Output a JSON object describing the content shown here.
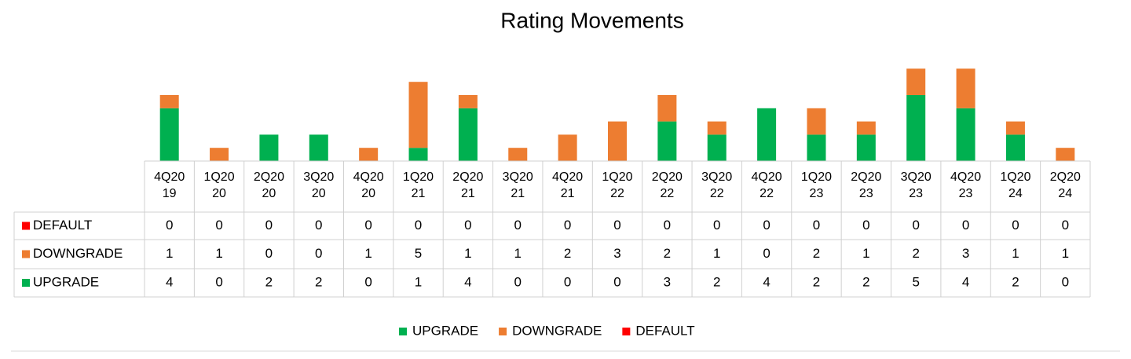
{
  "chart_data": {
    "type": "stacked-bar",
    "title": "Rating Movements",
    "categories": [
      "4Q2019",
      "1Q2020",
      "2Q2020",
      "3Q2020",
      "4Q2020",
      "1Q2021",
      "2Q2021",
      "3Q2021",
      "4Q2021",
      "1Q2022",
      "2Q2022",
      "3Q2022",
      "4Q2022",
      "1Q2023",
      "2Q2023",
      "3Q2023",
      "4Q2023",
      "1Q2024",
      "2Q2024"
    ],
    "series": [
      {
        "name": "UPGRADE",
        "color": "#00b050",
        "values": [
          4,
          0,
          2,
          2,
          0,
          1,
          4,
          0,
          0,
          0,
          3,
          2,
          4,
          2,
          2,
          5,
          4,
          2,
          0
        ]
      },
      {
        "name": "DOWNGRADE",
        "color": "#ed7d31",
        "values": [
          1,
          1,
          0,
          0,
          1,
          5,
          1,
          1,
          2,
          3,
          2,
          1,
          0,
          2,
          1,
          2,
          3,
          1,
          1
        ]
      },
      {
        "name": "DEFAULT",
        "color": "#ff0000",
        "values": [
          0,
          0,
          0,
          0,
          0,
          0,
          0,
          0,
          0,
          0,
          0,
          0,
          0,
          0,
          0,
          0,
          0,
          0,
          0
        ]
      }
    ],
    "legend": "bottom",
    "data_table": true
  }
}
